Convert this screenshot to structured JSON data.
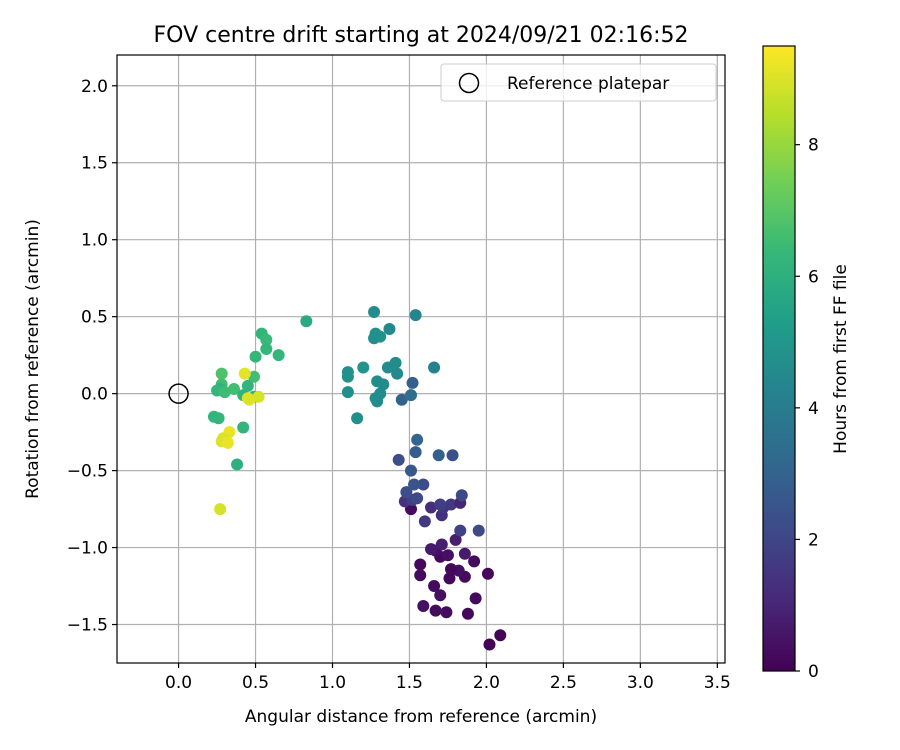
{
  "chart_data": {
    "type": "scatter",
    "title": "FOV centre drift starting at 2024/09/21 02:16:52",
    "xlabel": "Angular distance from reference (arcmin)",
    "ylabel": "Rotation from reference (arcmin)",
    "xlim": [
      -0.4,
      3.55
    ],
    "ylim": [
      -1.75,
      2.2
    ],
    "xticks": [
      0.0,
      0.5,
      1.0,
      1.5,
      2.0,
      2.5,
      3.0,
      3.5
    ],
    "xtick_labels": [
      "0.0",
      "0.5",
      "1.0",
      "1.5",
      "2.0",
      "2.5",
      "3.0",
      "3.5"
    ],
    "yticks": [
      -1.5,
      -1.0,
      -0.5,
      0.0,
      0.5,
      1.0,
      1.5,
      2.0
    ],
    "ytick_labels": [
      "−1.5",
      "−1.0",
      "−0.5",
      "0.0",
      "0.5",
      "1.0",
      "1.5",
      "2.0"
    ],
    "grid": true,
    "legend": {
      "position": "top-right",
      "entries": [
        "Reference platepar"
      ]
    },
    "reference_point": {
      "x": 0.0,
      "y": 0.0
    },
    "colorbar": {
      "label": "Hours from first FF file",
      "min": 0,
      "max": 9.5,
      "ticks": [
        0,
        2,
        4,
        6,
        8
      ],
      "tick_labels": [
        "0",
        "2",
        "4",
        "6",
        "8"
      ],
      "colormap": [
        "#440154",
        "#482878",
        "#3e4989",
        "#31688e",
        "#26828e",
        "#1f9e89",
        "#35b779",
        "#6ece58",
        "#b5de2b",
        "#fde725"
      ]
    },
    "points": [
      {
        "x": 2.02,
        "y": -1.63,
        "h": 0.1
      },
      {
        "x": 2.09,
        "y": -1.57,
        "h": 0.1
      },
      {
        "x": 1.88,
        "y": -1.43,
        "h": 0.2
      },
      {
        "x": 1.74,
        "y": -1.42,
        "h": 0.3
      },
      {
        "x": 1.67,
        "y": -1.41,
        "h": 0.3
      },
      {
        "x": 1.59,
        "y": -1.38,
        "h": 0.4
      },
      {
        "x": 1.93,
        "y": -1.33,
        "h": 0.3
      },
      {
        "x": 1.7,
        "y": -1.31,
        "h": 0.4
      },
      {
        "x": 1.66,
        "y": -1.25,
        "h": 0.3
      },
      {
        "x": 1.76,
        "y": -1.2,
        "h": 0.2
      },
      {
        "x": 1.86,
        "y": -1.19,
        "h": 0.3
      },
      {
        "x": 1.57,
        "y": -1.18,
        "h": 0.3
      },
      {
        "x": 2.01,
        "y": -1.17,
        "h": 0.2
      },
      {
        "x": 1.82,
        "y": -1.15,
        "h": 0.4
      },
      {
        "x": 1.77,
        "y": -1.14,
        "h": 0.2
      },
      {
        "x": 1.57,
        "y": -1.11,
        "h": 0.2
      },
      {
        "x": 1.92,
        "y": -1.09,
        "h": 0.3
      },
      {
        "x": 1.7,
        "y": -1.06,
        "h": 0.2
      },
      {
        "x": 1.75,
        "y": -1.05,
        "h": 0.4
      },
      {
        "x": 1.86,
        "y": -1.04,
        "h": 0.7
      },
      {
        "x": 1.67,
        "y": -1.02,
        "h": 0.4
      },
      {
        "x": 1.64,
        "y": -1.01,
        "h": 0.7
      },
      {
        "x": 1.71,
        "y": -0.98,
        "h": 0.8
      },
      {
        "x": 1.8,
        "y": -0.95,
        "h": 0.8
      },
      {
        "x": 1.83,
        "y": -0.89,
        "h": 1.9
      },
      {
        "x": 1.95,
        "y": -0.89,
        "h": 2.2
      },
      {
        "x": 1.6,
        "y": -0.83,
        "h": 1.6
      },
      {
        "x": 1.71,
        "y": -0.79,
        "h": 1.3
      },
      {
        "x": 1.51,
        "y": -0.75,
        "h": 0.3
      },
      {
        "x": 1.64,
        "y": -0.74,
        "h": 1.2
      },
      {
        "x": 1.72,
        "y": -0.74,
        "h": 1.5
      },
      {
        "x": 1.77,
        "y": -0.72,
        "h": 1.6
      },
      {
        "x": 1.7,
        "y": -0.72,
        "h": 1.8
      },
      {
        "x": 1.83,
        "y": -0.71,
        "h": 1.0
      },
      {
        "x": 1.47,
        "y": -0.7,
        "h": 1.4
      },
      {
        "x": 1.52,
        "y": -0.69,
        "h": 1.9
      },
      {
        "x": 1.55,
        "y": -0.68,
        "h": 2.1
      },
      {
        "x": 1.84,
        "y": -0.66,
        "h": 2.1
      },
      {
        "x": 1.48,
        "y": -0.64,
        "h": 2.3
      },
      {
        "x": 1.59,
        "y": -0.59,
        "h": 2.2
      },
      {
        "x": 1.53,
        "y": -0.59,
        "h": 2.5
      },
      {
        "x": 1.51,
        "y": -0.5,
        "h": 2.6
      },
      {
        "x": 1.43,
        "y": -0.43,
        "h": 2.3
      },
      {
        "x": 1.69,
        "y": -0.4,
        "h": 2.9
      },
      {
        "x": 1.78,
        "y": -0.4,
        "h": 2.4
      },
      {
        "x": 1.54,
        "y": -0.38,
        "h": 2.8
      },
      {
        "x": 1.55,
        "y": -0.3,
        "h": 3.1
      },
      {
        "x": 1.45,
        "y": -0.04,
        "h": 3.0
      },
      {
        "x": 1.51,
        "y": -0.01,
        "h": 3.4
      },
      {
        "x": 1.52,
        "y": 0.07,
        "h": 2.9
      },
      {
        "x": 1.66,
        "y": 0.17,
        "h": 4.2
      },
      {
        "x": 1.42,
        "y": 0.13,
        "h": 4.5
      },
      {
        "x": 1.36,
        "y": 0.17,
        "h": 4.6
      },
      {
        "x": 1.41,
        "y": 0.2,
        "h": 4.6
      },
      {
        "x": 1.29,
        "y": 0.08,
        "h": 4.6
      },
      {
        "x": 1.33,
        "y": 0.06,
        "h": 4.6
      },
      {
        "x": 1.31,
        "y": 0.0,
        "h": 4.6
      },
      {
        "x": 1.29,
        "y": -0.05,
        "h": 4.6
      },
      {
        "x": 1.28,
        "y": -0.03,
        "h": 4.6
      },
      {
        "x": 1.1,
        "y": 0.01,
        "h": 4.7
      },
      {
        "x": 1.16,
        "y": -0.16,
        "h": 4.7
      },
      {
        "x": 1.1,
        "y": 0.11,
        "h": 4.8
      },
      {
        "x": 1.1,
        "y": 0.14,
        "h": 4.8
      },
      {
        "x": 1.2,
        "y": 0.17,
        "h": 4.9
      },
      {
        "x": 1.27,
        "y": 0.36,
        "h": 4.7
      },
      {
        "x": 1.31,
        "y": 0.37,
        "h": 4.8
      },
      {
        "x": 1.28,
        "y": 0.39,
        "h": 4.8
      },
      {
        "x": 1.37,
        "y": 0.42,
        "h": 4.5
      },
      {
        "x": 1.27,
        "y": 0.53,
        "h": 4.6
      },
      {
        "x": 1.54,
        "y": 0.51,
        "h": 4.3
      },
      {
        "x": 0.83,
        "y": 0.47,
        "h": 5.8
      },
      {
        "x": 0.54,
        "y": 0.39,
        "h": 6.2
      },
      {
        "x": 0.57,
        "y": 0.35,
        "h": 6.4
      },
      {
        "x": 0.57,
        "y": 0.29,
        "h": 6.3
      },
      {
        "x": 0.65,
        "y": 0.25,
        "h": 6.3
      },
      {
        "x": 0.5,
        "y": 0.24,
        "h": 6.3
      },
      {
        "x": 0.28,
        "y": 0.13,
        "h": 6.8
      },
      {
        "x": 0.49,
        "y": 0.11,
        "h": 6.6
      },
      {
        "x": 0.28,
        "y": 0.06,
        "h": 6.6
      },
      {
        "x": 0.45,
        "y": 0.05,
        "h": 6.2
      },
      {
        "x": 0.27,
        "y": 0.03,
        "h": 6.1
      },
      {
        "x": 0.25,
        "y": 0.02,
        "h": 6.3
      },
      {
        "x": 0.36,
        "y": 0.03,
        "h": 6.6
      },
      {
        "x": 0.3,
        "y": 0.01,
        "h": 6.5
      },
      {
        "x": 0.42,
        "y": -0.01,
        "h": 6.1
      },
      {
        "x": 0.49,
        "y": -0.02,
        "h": 6.1
      },
      {
        "x": 0.23,
        "y": -0.15,
        "h": 6.2
      },
      {
        "x": 0.26,
        "y": -0.16,
        "h": 6.3
      },
      {
        "x": 0.42,
        "y": -0.22,
        "h": 6.2
      },
      {
        "x": 0.38,
        "y": -0.46,
        "h": 6.0
      },
      {
        "x": 0.43,
        "y": 0.13,
        "h": 9.1
      },
      {
        "x": 0.46,
        "y": -0.04,
        "h": 9.2
      },
      {
        "x": 0.52,
        "y": -0.02,
        "h": 8.9
      },
      {
        "x": 0.45,
        "y": -0.03,
        "h": 9.0
      },
      {
        "x": 0.33,
        "y": -0.25,
        "h": 9.2
      },
      {
        "x": 0.29,
        "y": -0.29,
        "h": 9.0
      },
      {
        "x": 0.28,
        "y": -0.31,
        "h": 9.0
      },
      {
        "x": 0.32,
        "y": -0.32,
        "h": 9.2
      },
      {
        "x": 0.27,
        "y": -0.75,
        "h": 8.9
      }
    ]
  }
}
